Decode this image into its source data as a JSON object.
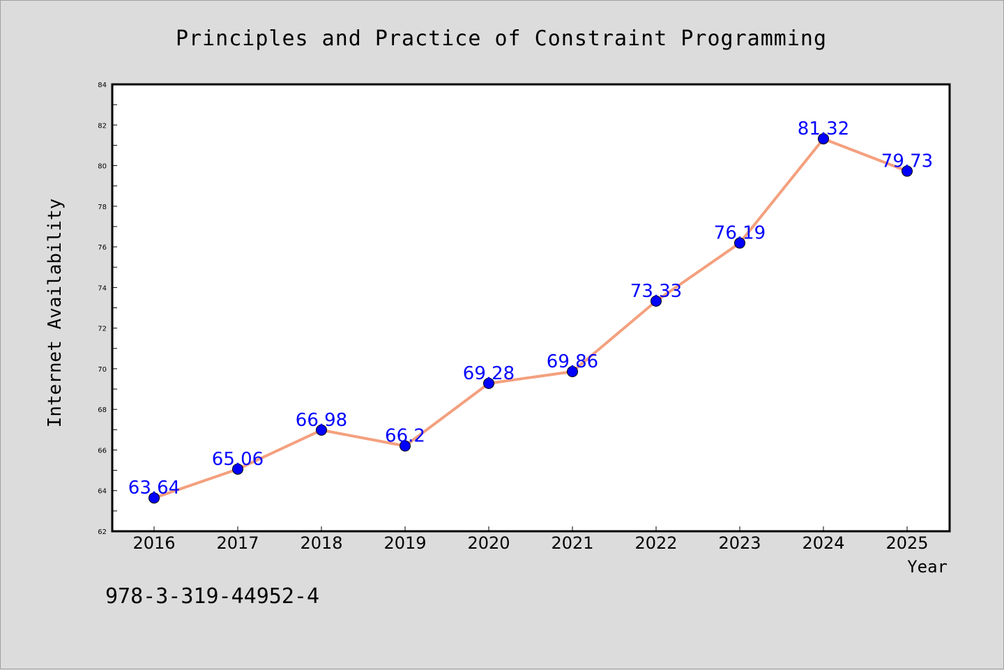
{
  "chart_data": {
    "type": "line",
    "title": "Principles and Practice of Constraint Programming",
    "xlabel": "Year",
    "ylabel": "Internet Availability",
    "categories": [
      "2016",
      "2017",
      "2018",
      "2019",
      "2020",
      "2021",
      "2022",
      "2023",
      "2024",
      "2025"
    ],
    "series": [
      {
        "values": [
          63.64,
          65.06,
          66.98,
          66.2,
          69.28,
          69.86,
          73.33,
          76.19,
          81.32,
          79.73
        ],
        "line_color": "#f4a07e",
        "marker_color": "#0000ff"
      }
    ],
    "ylim": [
      62,
      84
    ],
    "yticks": [
      62,
      64,
      66,
      68,
      70,
      72,
      74,
      76,
      78,
      80,
      82,
      84
    ],
    "grid": false,
    "legend": "none",
    "data_labels": true
  },
  "footnote": "978-3-319-44952-4"
}
